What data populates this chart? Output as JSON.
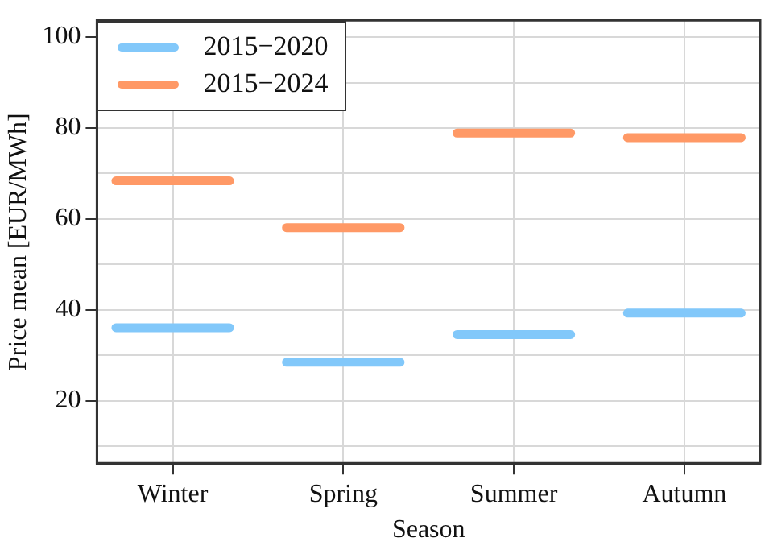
{
  "chart_data": {
    "type": "line",
    "xlabel": "Season",
    "ylabel": "Price mean [EUR/MWh]",
    "categories": [
      null,
      null,
      null,
      null,
      "Winter",
      null,
      null,
      null,
      null,
      null,
      null,
      null,
      null,
      "Spring",
      null,
      null,
      null,
      null,
      null,
      null,
      null,
      null,
      "Summer",
      null,
      null,
      null,
      null,
      null,
      null,
      null,
      null,
      "Autumn",
      null,
      null,
      null,
      null
    ],
    "series": [
      {
        "name": "2015−2020",
        "color": "#82c8fa",
        "values": [
          null,
          36.1,
          36.1,
          36.1,
          36.1,
          36.1,
          36.1,
          36.1,
          null,
          null,
          28.5,
          28.5,
          28.5,
          28.5,
          28.5,
          28.5,
          28.5,
          null,
          null,
          34.6,
          34.6,
          34.6,
          34.6,
          34.6,
          34.6,
          34.6,
          null,
          null,
          39.3,
          39.3,
          39.3,
          39.3,
          39.3,
          39.3,
          39.3,
          null
        ]
      },
      {
        "name": "2015−2024",
        "color": "#ff9966",
        "values": [
          null,
          68.4,
          68.4,
          68.4,
          68.4,
          68.4,
          68.4,
          68.4,
          null,
          null,
          58.1,
          58.1,
          58.1,
          58.1,
          58.1,
          58.1,
          58.1,
          null,
          null,
          78.9,
          78.9,
          78.9,
          78.9,
          78.9,
          78.9,
          78.9,
          null,
          null,
          77.9,
          77.9,
          77.9,
          77.9,
          77.9,
          77.9,
          77.9,
          null
        ]
      }
    ],
    "ylim": [
      6.3,
      103.7
    ],
    "yticks": [
      {
        "value": 10,
        "label": null
      },
      20,
      {
        "value": 30,
        "label": null
      },
      40,
      {
        "value": 50,
        "label": null
      },
      60,
      {
        "value": 70,
        "label": null
      },
      80,
      {
        "value": 90,
        "label": null
      },
      100
    ],
    "grid": true,
    "legend": "top left",
    "marker": "none",
    "line_style": "solid"
  }
}
